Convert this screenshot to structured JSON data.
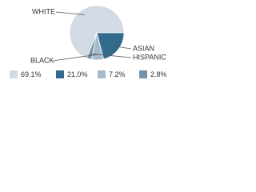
{
  "chart_data": {
    "type": "pie",
    "categories": [
      "WHITE",
      "ASIAN",
      "BLACK",
      "HISPANIC"
    ],
    "values": [
      69.1,
      21.0,
      7.2,
      2.8
    ],
    "value_labels": [
      "69.1%",
      "21.0%",
      "7.2%",
      "2.8%"
    ],
    "colors": [
      "#d2dae5",
      "#336b8e",
      "#a9bacb",
      "#7393ad"
    ]
  }
}
